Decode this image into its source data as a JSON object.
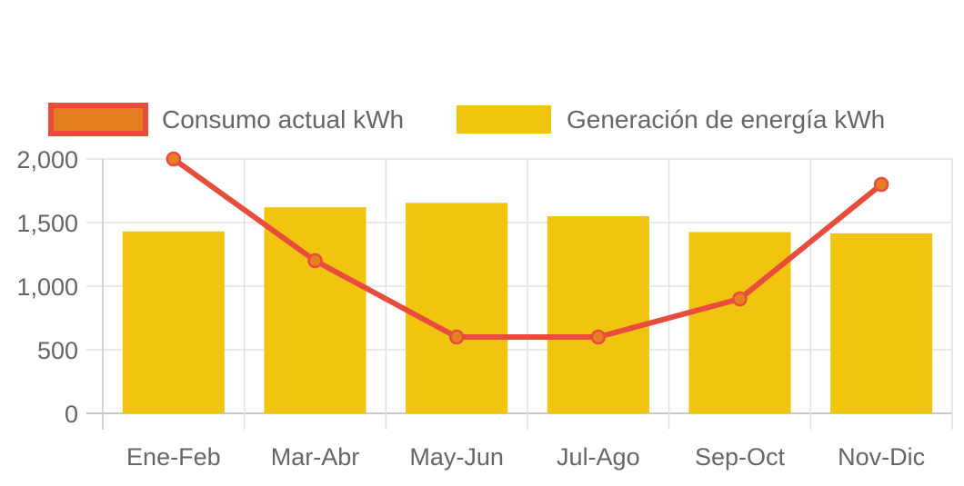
{
  "chart_data": {
    "type": "bar",
    "categories": [
      "Ene-Feb",
      "Mar-Abr",
      "May-Jun",
      "Jul-Ago",
      "Sep-Oct",
      "Nov-Dic"
    ],
    "series": [
      {
        "name": "Consumo actual kWh",
        "type": "line",
        "values": [
          2000,
          1200,
          600,
          600,
          900,
          1800
        ],
        "line_color": "#e74c3c",
        "point_color": "#e67e22"
      },
      {
        "name": "Generación de energía kWh",
        "type": "bar",
        "values": [
          1430,
          1620,
          1655,
          1550,
          1425,
          1415
        ],
        "color": "#f1c40f"
      }
    ],
    "y_ticks": [
      "0",
      "500",
      "1,000",
      "1,500",
      "2,000"
    ],
    "ylim": [
      0,
      2000
    ],
    "grid": true,
    "legend_position": "top"
  }
}
